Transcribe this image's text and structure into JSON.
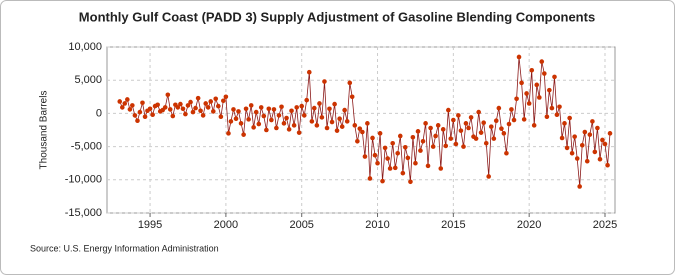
{
  "chart_data": {
    "type": "line",
    "title": "Monthly Gulf Coast (PADD 3) Supply Adjustment of Gasoline Blending Components",
    "y_label": "Thousand Barrels",
    "source": "Source: U.S. Energy Information Administration",
    "xlim": [
      1992.16,
      2025.66
    ],
    "xticks": [
      1995,
      2000,
      2005,
      2010,
      2015,
      2020,
      2025
    ],
    "ylim": [
      -15000,
      10000
    ],
    "yticks": [
      {
        "value": -15000,
        "label": "-15,000"
      },
      {
        "value": -10000,
        "label": "-10,000"
      },
      {
        "value": -5000,
        "label": "-5,000"
      },
      0,
      {
        "value": 5000,
        "label": "5,000"
      },
      {
        "value": 10000,
        "label": "10,000"
      }
    ],
    "grid": true,
    "line_color": "#8b1a1a",
    "marker_color": "#cc3300",
    "x": [
      1993.0,
      1993.17,
      1993.33,
      1993.5,
      1993.67,
      1993.83,
      1994.0,
      1994.17,
      1994.33,
      1994.5,
      1994.67,
      1994.83,
      1995.0,
      1995.17,
      1995.33,
      1995.5,
      1995.67,
      1995.83,
      1996.0,
      1996.17,
      1996.33,
      1996.5,
      1996.67,
      1996.83,
      1997.0,
      1997.17,
      1997.33,
      1997.5,
      1997.67,
      1997.83,
      1998.0,
      1998.17,
      1998.33,
      1998.5,
      1998.67,
      1998.83,
      1999.0,
      1999.17,
      1999.33,
      1999.5,
      1999.67,
      1999.83,
      2000.0,
      2000.17,
      2000.33,
      2000.5,
      2000.67,
      2000.83,
      2001.0,
      2001.17,
      2001.33,
      2001.5,
      2001.67,
      2001.83,
      2002.0,
      2002.17,
      2002.33,
      2002.5,
      2002.67,
      2002.83,
      2003.0,
      2003.17,
      2003.33,
      2003.5,
      2003.67,
      2003.83,
      2004.0,
      2004.17,
      2004.33,
      2004.5,
      2004.67,
      2004.83,
      2005.0,
      2005.17,
      2005.33,
      2005.5,
      2005.67,
      2005.83,
      2006.0,
      2006.17,
      2006.33,
      2006.5,
      2006.67,
      2006.83,
      2007.0,
      2007.17,
      2007.33,
      2007.5,
      2007.67,
      2007.83,
      2008.0,
      2008.17,
      2008.33,
      2008.5,
      2008.67,
      2008.83,
      2009.0,
      2009.17,
      2009.33,
      2009.5,
      2009.67,
      2009.83,
      2010.0,
      2010.17,
      2010.33,
      2010.5,
      2010.67,
      2010.83,
      2011.0,
      2011.17,
      2011.33,
      2011.5,
      2011.67,
      2011.83,
      2012.0,
      2012.17,
      2012.33,
      2012.5,
      2012.67,
      2012.83,
      2013.0,
      2013.17,
      2013.33,
      2013.5,
      2013.67,
      2013.83,
      2014.0,
      2014.17,
      2014.33,
      2014.5,
      2014.67,
      2014.83,
      2015.0,
      2015.17,
      2015.33,
      2015.5,
      2015.67,
      2015.83,
      2016.0,
      2016.17,
      2016.33,
      2016.5,
      2016.67,
      2016.83,
      2017.0,
      2017.17,
      2017.33,
      2017.5,
      2017.67,
      2017.83,
      2018.0,
      2018.17,
      2018.33,
      2018.5,
      2018.67,
      2018.83,
      2019.0,
      2019.17,
      2019.33,
      2019.5,
      2019.67,
      2019.83,
      2020.0,
      2020.17,
      2020.33,
      2020.5,
      2020.67,
      2020.83,
      2021.0,
      2021.17,
      2021.33,
      2021.5,
      2021.67,
      2021.83,
      2022.0,
      2022.17,
      2022.33,
      2022.5,
      2022.67,
      2022.83,
      2023.0,
      2023.17,
      2023.33,
      2023.5,
      2023.67,
      2023.83,
      2024.0,
      2024.17,
      2024.33,
      2024.5,
      2024.67,
      2024.83,
      2025.0,
      2025.17,
      2025.33
    ],
    "values": [
      1800,
      900,
      1500,
      2100,
      600,
      1200,
      -300,
      -1100,
      200,
      1600,
      -500,
      400,
      700,
      -200,
      1100,
      1300,
      300,
      500,
      900,
      2800,
      600,
      -400,
      1300,
      900,
      1400,
      700,
      -100,
      1200,
      1700,
      200,
      800,
      2300,
      400,
      -300,
      1500,
      900,
      1800,
      300,
      2200,
      1100,
      -500,
      1900,
      2500,
      -3000,
      -1200,
      600,
      -800,
      300,
      -1500,
      -3200,
      700,
      -900,
      1200,
      -2100,
      200,
      -1600,
      900,
      -400,
      -2500,
      700,
      -1000,
      600,
      -2200,
      -300,
      1000,
      -1500,
      -700,
      -2400,
      400,
      -1800,
      900,
      -2900,
      1100,
      -300,
      2000,
      6200,
      -1200,
      800,
      -1800,
      1500,
      -600,
      4800,
      -2200,
      700,
      -1300,
      1400,
      -2600,
      -800,
      -2000,
      500,
      -1200,
      4600,
      2500,
      -1800,
      -4200,
      -2300,
      -2800,
      -6500,
      -1500,
      -9800,
      -3700,
      -6300,
      -7500,
      -3000,
      -10200,
      -5200,
      -6800,
      -8300,
      -4500,
      -8200,
      -6000,
      -3400,
      -9000,
      -5100,
      -6700,
      -10300,
      -3600,
      -7500,
      -2700,
      -5600,
      -4200,
      -1500,
      -7900,
      -2200,
      -5000,
      -3400,
      -1800,
      -8300,
      -2400,
      -4900,
      500,
      -3800,
      -1000,
      -4600,
      -300,
      -2600,
      -5000,
      -1500,
      -2200,
      -600,
      -3500,
      -3800,
      200,
      -2900,
      -1400,
      -4500,
      -9500,
      -2000,
      -3800,
      -1100,
      800,
      -2300,
      -3000,
      -6000,
      -1600,
      600,
      -1000,
      2200,
      8500,
      4600,
      -900,
      3000,
      1500,
      6500,
      -1800,
      4300,
      2400,
      7800,
      6000,
      -500,
      3500,
      800,
      5500,
      -200,
      1000,
      -3700,
      -1500,
      -5200,
      -700,
      -6000,
      -3500,
      -6800,
      -11000,
      -4800,
      -2800,
      -7200,
      -3200,
      -1200,
      -5800,
      -2200,
      -6900,
      -4000,
      -4600,
      -7800,
      -3000
    ]
  }
}
